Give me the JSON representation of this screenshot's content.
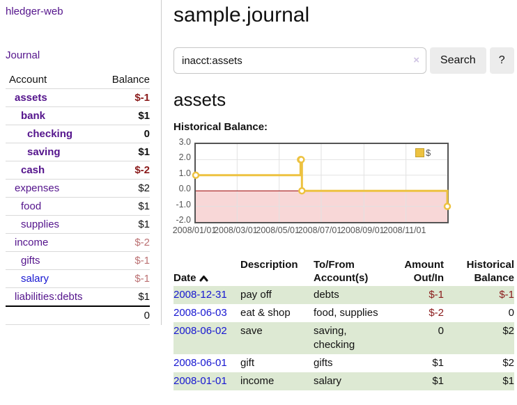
{
  "app": {
    "title": "hledger-web"
  },
  "sidebar": {
    "journal_link": "Journal",
    "accounts_table": {
      "account_header": "Account",
      "balance_header": "Balance",
      "rows": [
        {
          "label": "assets",
          "depth": 1,
          "bold": true,
          "color": "purple",
          "balance": "$-1",
          "balance_class": "neg-strong"
        },
        {
          "label": "bank",
          "depth": 2,
          "bold": true,
          "color": "purple",
          "balance": "$1",
          "balance_class": ""
        },
        {
          "label": "checking",
          "depth": 3,
          "bold": true,
          "color": "purple",
          "balance": "0",
          "balance_class": ""
        },
        {
          "label": "saving",
          "depth": 3,
          "bold": true,
          "color": "purple",
          "balance": "$1",
          "balance_class": ""
        },
        {
          "label": "cash",
          "depth": 2,
          "bold": true,
          "color": "purple",
          "balance": "$-2",
          "balance_class": "neg-strong"
        },
        {
          "label": "expenses",
          "depth": 1,
          "bold": false,
          "color": "purple",
          "balance": "$2",
          "balance_class": ""
        },
        {
          "label": "food",
          "depth": 2,
          "bold": false,
          "color": "purple",
          "balance": "$1",
          "balance_class": ""
        },
        {
          "label": "supplies",
          "depth": 2,
          "bold": false,
          "color": "purple",
          "balance": "$1",
          "balance_class": ""
        },
        {
          "label": "income",
          "depth": 1,
          "bold": false,
          "color": "purple",
          "balance": "$-2",
          "balance_class": "neg-soft"
        },
        {
          "label": "gifts",
          "depth": 2,
          "bold": false,
          "color": "purple",
          "balance": "$-1",
          "balance_class": "neg-soft"
        },
        {
          "label": "salary",
          "depth": 2,
          "bold": false,
          "color": "blue",
          "balance": "$-1",
          "balance_class": "neg-soft"
        },
        {
          "label": "liabilities:debts",
          "depth": 1,
          "bold": false,
          "color": "purple",
          "balance": "$1",
          "balance_class": ""
        }
      ],
      "total": "0"
    }
  },
  "main": {
    "title": "sample.journal",
    "search": {
      "value": "inacct:assets",
      "clear_icon": "×",
      "button_label": "Search",
      "help_label": "?"
    },
    "account_heading": "assets",
    "chart_label": "Historical Balance:"
  },
  "chart_data": {
    "type": "line",
    "step": true,
    "title": "Historical Balance",
    "series": [
      {
        "name": "$",
        "color": "#edc240",
        "points": [
          {
            "date": "2008-01-01",
            "value": 1
          },
          {
            "date": "2008-06-01",
            "value": 2
          },
          {
            "date": "2008-06-02",
            "value": 2
          },
          {
            "date": "2008-06-03",
            "value": 0
          },
          {
            "date": "2008-12-31",
            "value": -1
          }
        ]
      }
    ],
    "x_range": [
      "2008-01-01",
      "2008-12-31"
    ],
    "ylim": [
      -2,
      3
    ],
    "yticks": [
      {
        "label": "3.0",
        "value": 3
      },
      {
        "label": "2.0",
        "value": 2
      },
      {
        "label": "1.0",
        "value": 1
      },
      {
        "label": "0.0",
        "value": 0
      },
      {
        "label": "-1.0",
        "value": -1
      },
      {
        "label": "-2.0",
        "value": -2
      }
    ],
    "xticks": [
      {
        "label": "2008/01/01",
        "date": "2008-01-01"
      },
      {
        "label": "2008/03/01",
        "date": "2008-03-01"
      },
      {
        "label": "2008/05/01",
        "date": "2008-05-01"
      },
      {
        "label": "2008/07/01",
        "date": "2008-07-01"
      },
      {
        "label": "2008/09/01",
        "date": "2008-09-01"
      },
      {
        "label": "2008/11/01",
        "date": "2008-11-01"
      }
    ],
    "grid": true,
    "legend_position": "top-right",
    "negative_region_color": "#f8d7d7",
    "zero_line_color": "#990000",
    "grid_line_color": "#e2e2e2",
    "border_color": "#545454"
  },
  "register_table": {
    "headers": {
      "date": "Date",
      "description": "Description",
      "accounts": "To/From\nAccount(s)",
      "amount": "Amount\nOut/In",
      "balance": "Historical\nBalance"
    },
    "rows": [
      {
        "date": "2008-12-31",
        "description": "pay off",
        "accounts": "debts",
        "amount": "$-1",
        "amount_negative": true,
        "balance": "$-1",
        "balance_negative": true
      },
      {
        "date": "2008-06-03",
        "description": "eat & shop",
        "accounts": "food, supplies",
        "amount": "$-2",
        "amount_negative": true,
        "balance": "0",
        "balance_negative": false
      },
      {
        "date": "2008-06-02",
        "description": "save",
        "accounts": "saving, checking",
        "amount": "0",
        "amount_negative": false,
        "balance": "$2",
        "balance_negative": false
      },
      {
        "date": "2008-06-01",
        "description": "gift",
        "accounts": "gifts",
        "amount": "$1",
        "amount_negative": false,
        "balance": "$2",
        "balance_negative": false
      },
      {
        "date": "2008-01-01",
        "description": "income",
        "accounts": "salary",
        "amount": "$1",
        "amount_negative": false,
        "balance": "$1",
        "balance_negative": false
      }
    ]
  }
}
